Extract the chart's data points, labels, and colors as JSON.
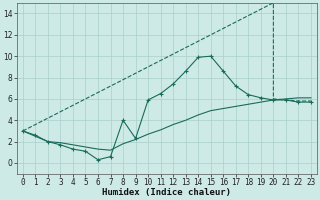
{
  "xlabel": "Humidex (Indice chaleur)",
  "bg_color": "#ceeae6",
  "line_color": "#1a6b5a",
  "grid_color": "#aacfcb",
  "xlim": [
    -0.5,
    23.5
  ],
  "ylim": [
    -1,
    15
  ],
  "xticks": [
    0,
    1,
    2,
    3,
    4,
    5,
    6,
    7,
    8,
    9,
    10,
    11,
    12,
    13,
    14,
    15,
    16,
    17,
    18,
    19,
    20,
    21,
    22,
    23
  ],
  "yticks": [
    0,
    2,
    4,
    6,
    8,
    10,
    12,
    14
  ],
  "curve1_x": [
    0,
    1,
    2,
    3,
    4,
    5,
    6,
    7,
    8,
    9,
    10,
    11,
    12,
    13,
    14,
    15,
    16,
    17,
    18,
    19,
    20,
    21,
    22,
    23
  ],
  "curve1_y": [
    3.0,
    2.6,
    2.0,
    1.7,
    1.3,
    1.1,
    0.3,
    0.6,
    4.0,
    2.3,
    5.9,
    6.5,
    7.4,
    8.6,
    9.9,
    10.0,
    8.6,
    7.2,
    6.4,
    6.1,
    5.9,
    5.9,
    5.7,
    5.7
  ],
  "curve2_x": [
    0,
    1,
    2,
    3,
    4,
    5,
    6,
    7,
    8,
    9,
    10,
    11,
    12,
    13,
    14,
    15,
    16,
    17,
    18,
    19,
    20,
    21,
    22,
    23
  ],
  "curve2_y": [
    3.0,
    2.5,
    2.0,
    1.9,
    1.7,
    1.5,
    1.3,
    1.2,
    1.8,
    2.2,
    2.7,
    3.1,
    3.6,
    4.0,
    4.5,
    4.9,
    5.1,
    5.3,
    5.5,
    5.7,
    5.9,
    6.0,
    6.1,
    6.1
  ],
  "curve3_x": [
    0,
    20,
    20,
    21,
    22,
    23
  ],
  "curve3_y": [
    3.0,
    15.0,
    6.0,
    5.9,
    5.8,
    5.8
  ],
  "curve3_dashed": true,
  "tick_fontsize": 5.5,
  "label_fontsize": 6.5
}
